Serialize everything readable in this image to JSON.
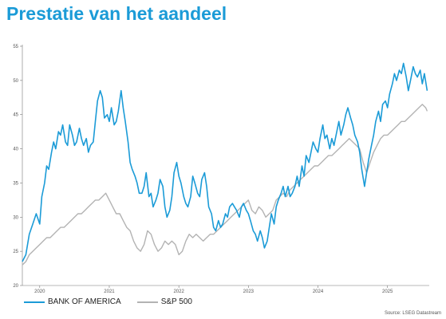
{
  "title": "Prestatie van het aandeel",
  "source": "Source: LSEG Datastream",
  "colors": {
    "title": "#1B9BD7",
    "series_bac": "#1B9BD7",
    "series_sp": "#B3B3B3"
  },
  "chart_data": {
    "type": "line",
    "title": "",
    "xlabel": "",
    "ylabel": "",
    "ylim": [
      20,
      55
    ],
    "xlim": [
      2019.75,
      2025.6
    ],
    "yticks": [
      20,
      25,
      30,
      35,
      40,
      45,
      50,
      55
    ],
    "xticks": [
      {
        "label": "2020",
        "value": 2020.0
      },
      {
        "label": "2021",
        "value": 2021.0
      },
      {
        "label": "2022",
        "value": 2022.0
      },
      {
        "label": "2023",
        "value": 2023.0
      },
      {
        "label": "2024",
        "value": 2024.0
      },
      {
        "label": "2025",
        "value": 2025.0
      }
    ],
    "grid": false,
    "legend_position": "bottom-left",
    "series": [
      {
        "name": "BANK OF AMERICA",
        "color": "#1B9BD7",
        "points": [
          [
            2019.75,
            23.5
          ],
          [
            2019.8,
            24.5
          ],
          [
            2019.85,
            27.5
          ],
          [
            2019.9,
            29.0
          ],
          [
            2019.95,
            30.5
          ],
          [
            2020.0,
            29.0
          ],
          [
            2020.03,
            33.0
          ],
          [
            2020.07,
            35.0
          ],
          [
            2020.1,
            37.5
          ],
          [
            2020.13,
            37.0
          ],
          [
            2020.17,
            39.5
          ],
          [
            2020.2,
            41.0
          ],
          [
            2020.23,
            40.0
          ],
          [
            2020.27,
            42.5
          ],
          [
            2020.3,
            42.0
          ],
          [
            2020.33,
            43.5
          ],
          [
            2020.37,
            41.0
          ],
          [
            2020.4,
            40.5
          ],
          [
            2020.43,
            43.5
          ],
          [
            2020.47,
            42.0
          ],
          [
            2020.5,
            40.5
          ],
          [
            2020.53,
            41.0
          ],
          [
            2020.57,
            43.0
          ],
          [
            2020.6,
            41.5
          ],
          [
            2020.63,
            40.5
          ],
          [
            2020.67,
            41.5
          ],
          [
            2020.7,
            39.5
          ],
          [
            2020.73,
            40.5
          ],
          [
            2020.77,
            41.0
          ],
          [
            2020.8,
            44.0
          ],
          [
            2020.83,
            47.0
          ],
          [
            2020.87,
            48.5
          ],
          [
            2020.9,
            47.5
          ],
          [
            2020.93,
            44.5
          ],
          [
            2020.97,
            45.0
          ],
          [
            2021.0,
            44.0
          ],
          [
            2021.03,
            46.0
          ],
          [
            2021.07,
            43.5
          ],
          [
            2021.1,
            44.0
          ],
          [
            2021.13,
            45.5
          ],
          [
            2021.17,
            48.5
          ],
          [
            2021.2,
            46.0
          ],
          [
            2021.23,
            44.0
          ],
          [
            2021.27,
            41.0
          ],
          [
            2021.3,
            38.0
          ],
          [
            2021.33,
            37.0
          ],
          [
            2021.37,
            36.0
          ],
          [
            2021.4,
            35.0
          ],
          [
            2021.43,
            33.5
          ],
          [
            2021.47,
            33.5
          ],
          [
            2021.5,
            34.5
          ],
          [
            2021.53,
            36.5
          ],
          [
            2021.57,
            33.0
          ],
          [
            2021.6,
            33.5
          ],
          [
            2021.63,
            31.5
          ],
          [
            2021.67,
            32.5
          ],
          [
            2021.7,
            33.5
          ],
          [
            2021.73,
            35.5
          ],
          [
            2021.77,
            34.5
          ],
          [
            2021.8,
            31.5
          ],
          [
            2021.83,
            30.0
          ],
          [
            2021.87,
            31.0
          ],
          [
            2021.9,
            33.0
          ],
          [
            2021.93,
            36.5
          ],
          [
            2021.97,
            38.0
          ],
          [
            2022.0,
            36.0
          ],
          [
            2022.03,
            35.0
          ],
          [
            2022.07,
            33.0
          ],
          [
            2022.1,
            32.0
          ],
          [
            2022.13,
            31.5
          ],
          [
            2022.17,
            33.0
          ],
          [
            2022.2,
            36.0
          ],
          [
            2022.23,
            35.0
          ],
          [
            2022.27,
            33.5
          ],
          [
            2022.3,
            33.0
          ],
          [
            2022.33,
            35.5
          ],
          [
            2022.37,
            36.5
          ],
          [
            2022.4,
            34.5
          ],
          [
            2022.43,
            31.5
          ],
          [
            2022.47,
            30.5
          ],
          [
            2022.5,
            28.5
          ],
          [
            2022.53,
            28.0
          ],
          [
            2022.57,
            29.5
          ],
          [
            2022.6,
            28.5
          ],
          [
            2022.63,
            29.0
          ],
          [
            2022.67,
            30.5
          ],
          [
            2022.7,
            30.0
          ],
          [
            2022.73,
            31.5
          ],
          [
            2022.77,
            32.0
          ],
          [
            2022.8,
            31.5
          ],
          [
            2022.83,
            31.0
          ],
          [
            2022.87,
            30.0
          ],
          [
            2022.9,
            31.5
          ],
          [
            2022.93,
            32.0
          ],
          [
            2022.97,
            31.0
          ],
          [
            2023.0,
            30.5
          ],
          [
            2023.03,
            29.5
          ],
          [
            2023.07,
            28.0
          ],
          [
            2023.1,
            27.5
          ],
          [
            2023.13,
            26.5
          ],
          [
            2023.17,
            28.0
          ],
          [
            2023.2,
            27.0
          ],
          [
            2023.23,
            25.5
          ],
          [
            2023.27,
            26.5
          ],
          [
            2023.3,
            28.5
          ],
          [
            2023.33,
            30.5
          ],
          [
            2023.37,
            29.0
          ],
          [
            2023.4,
            31.5
          ],
          [
            2023.43,
            32.5
          ],
          [
            2023.47,
            33.5
          ],
          [
            2023.5,
            34.5
          ],
          [
            2023.53,
            33.0
          ],
          [
            2023.57,
            34.5
          ],
          [
            2023.6,
            33.0
          ],
          [
            2023.63,
            33.5
          ],
          [
            2023.67,
            34.5
          ],
          [
            2023.7,
            36.0
          ],
          [
            2023.73,
            34.5
          ],
          [
            2023.77,
            37.5
          ],
          [
            2023.8,
            36.0
          ],
          [
            2023.83,
            39.0
          ],
          [
            2023.87,
            38.0
          ],
          [
            2023.9,
            39.5
          ],
          [
            2023.93,
            41.0
          ],
          [
            2023.97,
            40.0
          ],
          [
            2024.0,
            39.5
          ],
          [
            2024.03,
            41.5
          ],
          [
            2024.07,
            43.5
          ],
          [
            2024.1,
            41.5
          ],
          [
            2024.13,
            42.0
          ],
          [
            2024.17,
            40.0
          ],
          [
            2024.2,
            41.5
          ],
          [
            2024.23,
            40.5
          ],
          [
            2024.27,
            42.5
          ],
          [
            2024.3,
            44.0
          ],
          [
            2024.33,
            42.0
          ],
          [
            2024.37,
            43.5
          ],
          [
            2024.4,
            45.0
          ],
          [
            2024.43,
            46.0
          ],
          [
            2024.47,
            44.5
          ],
          [
            2024.5,
            43.5
          ],
          [
            2024.53,
            42.0
          ],
          [
            2024.57,
            41.0
          ],
          [
            2024.6,
            39.5
          ],
          [
            2024.63,
            37.0
          ],
          [
            2024.67,
            34.5
          ],
          [
            2024.7,
            36.5
          ],
          [
            2024.73,
            38.5
          ],
          [
            2024.77,
            40.5
          ],
          [
            2024.8,
            42.0
          ],
          [
            2024.83,
            44.0
          ],
          [
            2024.87,
            45.5
          ],
          [
            2024.9,
            44.0
          ],
          [
            2024.93,
            46.5
          ],
          [
            2024.97,
            47.0
          ],
          [
            2025.0,
            46.0
          ],
          [
            2025.03,
            48.0
          ],
          [
            2025.07,
            49.5
          ],
          [
            2025.1,
            51.0
          ],
          [
            2025.13,
            50.0
          ],
          [
            2025.17,
            51.5
          ],
          [
            2025.2,
            51.0
          ],
          [
            2025.23,
            52.5
          ],
          [
            2025.27,
            50.5
          ],
          [
            2025.3,
            48.5
          ],
          [
            2025.33,
            50.0
          ],
          [
            2025.37,
            52.0
          ],
          [
            2025.4,
            51.0
          ],
          [
            2025.43,
            50.5
          ],
          [
            2025.47,
            51.5
          ],
          [
            2025.5,
            49.5
          ],
          [
            2025.53,
            51.0
          ],
          [
            2025.57,
            48.5
          ]
        ]
      },
      {
        "name": "S&P 500",
        "color": "#B3B3B3",
        "points": [
          [
            2019.75,
            23.0
          ],
          [
            2019.8,
            23.5
          ],
          [
            2019.85,
            24.5
          ],
          [
            2019.9,
            25.0
          ],
          [
            2019.95,
            25.5
          ],
          [
            2020.0,
            26.0
          ],
          [
            2020.05,
            26.5
          ],
          [
            2020.1,
            27.0
          ],
          [
            2020.15,
            27.0
          ],
          [
            2020.2,
            27.5
          ],
          [
            2020.25,
            28.0
          ],
          [
            2020.3,
            28.5
          ],
          [
            2020.35,
            28.5
          ],
          [
            2020.4,
            29.0
          ],
          [
            2020.45,
            29.5
          ],
          [
            2020.5,
            30.0
          ],
          [
            2020.55,
            30.5
          ],
          [
            2020.6,
            30.5
          ],
          [
            2020.65,
            31.0
          ],
          [
            2020.7,
            31.5
          ],
          [
            2020.75,
            32.0
          ],
          [
            2020.8,
            32.5
          ],
          [
            2020.85,
            32.5
          ],
          [
            2020.9,
            33.0
          ],
          [
            2020.95,
            33.5
          ],
          [
            2021.0,
            32.5
          ],
          [
            2021.05,
            31.5
          ],
          [
            2021.1,
            30.5
          ],
          [
            2021.15,
            30.5
          ],
          [
            2021.2,
            29.5
          ],
          [
            2021.25,
            28.5
          ],
          [
            2021.3,
            28.0
          ],
          [
            2021.35,
            26.5
          ],
          [
            2021.4,
            25.5
          ],
          [
            2021.45,
            25.0
          ],
          [
            2021.5,
            26.0
          ],
          [
            2021.55,
            28.0
          ],
          [
            2021.6,
            27.5
          ],
          [
            2021.65,
            26.0
          ],
          [
            2021.7,
            25.0
          ],
          [
            2021.75,
            25.5
          ],
          [
            2021.8,
            26.5
          ],
          [
            2021.85,
            26.0
          ],
          [
            2021.9,
            26.5
          ],
          [
            2021.95,
            26.0
          ],
          [
            2022.0,
            24.5
          ],
          [
            2022.05,
            25.0
          ],
          [
            2022.1,
            26.5
          ],
          [
            2022.15,
            27.5
          ],
          [
            2022.2,
            27.0
          ],
          [
            2022.25,
            27.5
          ],
          [
            2022.3,
            27.0
          ],
          [
            2022.35,
            26.5
          ],
          [
            2022.4,
            27.0
          ],
          [
            2022.45,
            27.5
          ],
          [
            2022.5,
            27.5
          ],
          [
            2022.55,
            28.0
          ],
          [
            2022.6,
            28.5
          ],
          [
            2022.65,
            29.0
          ],
          [
            2022.7,
            29.5
          ],
          [
            2022.75,
            30.0
          ],
          [
            2022.8,
            30.5
          ],
          [
            2022.85,
            31.0
          ],
          [
            2022.9,
            31.5
          ],
          [
            2022.95,
            32.0
          ],
          [
            2023.0,
            32.5
          ],
          [
            2023.05,
            31.0
          ],
          [
            2023.1,
            30.5
          ],
          [
            2023.15,
            31.5
          ],
          [
            2023.2,
            31.0
          ],
          [
            2023.25,
            30.0
          ],
          [
            2023.3,
            30.5
          ],
          [
            2023.35,
            31.0
          ],
          [
            2023.4,
            32.5
          ],
          [
            2023.45,
            33.0
          ],
          [
            2023.5,
            33.5
          ],
          [
            2023.55,
            33.0
          ],
          [
            2023.6,
            34.0
          ],
          [
            2023.65,
            34.5
          ],
          [
            2023.7,
            35.0
          ],
          [
            2023.75,
            35.5
          ],
          [
            2023.8,
            36.0
          ],
          [
            2023.85,
            36.5
          ],
          [
            2023.9,
            37.0
          ],
          [
            2023.95,
            37.5
          ],
          [
            2024.0,
            37.5
          ],
          [
            2024.05,
            38.0
          ],
          [
            2024.1,
            38.5
          ],
          [
            2024.15,
            39.0
          ],
          [
            2024.2,
            39.0
          ],
          [
            2024.25,
            39.5
          ],
          [
            2024.3,
            40.0
          ],
          [
            2024.35,
            40.5
          ],
          [
            2024.4,
            41.0
          ],
          [
            2024.45,
            41.5
          ],
          [
            2024.5,
            41.0
          ],
          [
            2024.55,
            40.5
          ],
          [
            2024.6,
            40.0
          ],
          [
            2024.65,
            38.0
          ],
          [
            2024.7,
            36.5
          ],
          [
            2024.75,
            38.0
          ],
          [
            2024.8,
            39.5
          ],
          [
            2024.85,
            40.5
          ],
          [
            2024.9,
            41.5
          ],
          [
            2024.95,
            42.0
          ],
          [
            2025.0,
            42.0
          ],
          [
            2025.05,
            42.5
          ],
          [
            2025.1,
            43.0
          ],
          [
            2025.15,
            43.5
          ],
          [
            2025.2,
            44.0
          ],
          [
            2025.25,
            44.0
          ],
          [
            2025.3,
            44.5
          ],
          [
            2025.35,
            45.0
          ],
          [
            2025.4,
            45.5
          ],
          [
            2025.45,
            46.0
          ],
          [
            2025.5,
            46.5
          ],
          [
            2025.55,
            46.0
          ],
          [
            2025.57,
            45.5
          ]
        ]
      }
    ]
  }
}
